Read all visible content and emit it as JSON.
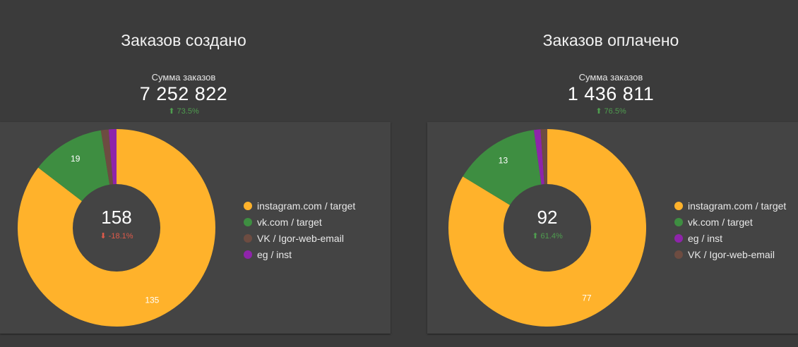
{
  "panels": [
    {
      "title": "Заказов создано",
      "sum_label": "Сумма заказов",
      "sum_value": "7 252 822",
      "sum_delta": "⬆ 73.5%",
      "center_value": "158",
      "center_delta": "⬇ -18.1%"
    },
    {
      "title": "Заказов оплачено",
      "sum_label": "Сумма заказов",
      "sum_value": "1 436 811",
      "sum_delta": "⬆ 76.5%",
      "center_value": "92",
      "center_delta": "⬆ 61.4%"
    }
  ],
  "chart_data": [
    {
      "type": "pie",
      "title": "Заказов создано",
      "total": 158,
      "slices": [
        {
          "label": "instagram.com / target",
          "value": 135,
          "color": "#ffb22b",
          "shown_label": "135"
        },
        {
          "label": "vk.com / target",
          "value": 19,
          "color": "#3e8e41",
          "shown_label": "19"
        },
        {
          "label": "VK / Igor-web-email",
          "value": 2,
          "color": "#6d4c41",
          "shown_label": ""
        },
        {
          "label": "eg / inst",
          "value": 2,
          "color": "#8e24aa",
          "shown_label": ""
        }
      ],
      "legend": [
        "instagram.com / target",
        "vk.com / target",
        "VK / Igor-web-email",
        "eg / inst"
      ]
    },
    {
      "type": "pie",
      "title": "Заказов оплачено",
      "total": 92,
      "slices": [
        {
          "label": "instagram.com / target",
          "value": 77,
          "color": "#ffb22b",
          "shown_label": "77"
        },
        {
          "label": "vk.com / target",
          "value": 13,
          "color": "#3e8e41",
          "shown_label": "13"
        },
        {
          "label": "eg / inst",
          "value": 1,
          "color": "#8e24aa",
          "shown_label": ""
        },
        {
          "label": "VK / Igor-web-email",
          "value": 1,
          "color": "#6d4c41",
          "shown_label": ""
        }
      ],
      "legend": [
        "instagram.com / target",
        "vk.com / target",
        "eg / inst",
        "VK / Igor-web-email"
      ]
    }
  ]
}
